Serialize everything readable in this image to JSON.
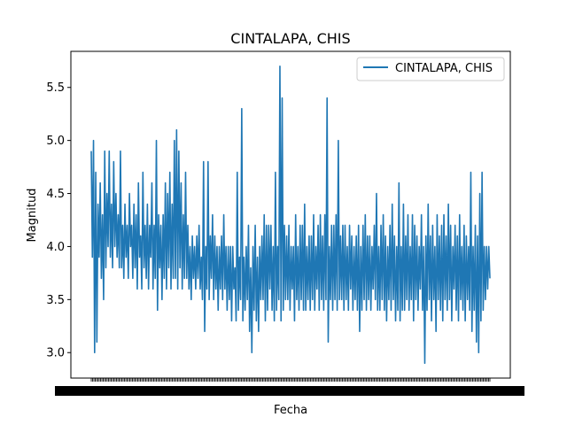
{
  "chart_data": {
    "type": "line",
    "title": "CINTALAPA, CHIS",
    "xlabel": "Fecha",
    "ylabel": "Magnitud",
    "ylim": [
      2.76,
      5.84
    ],
    "yticks": [
      3.0,
      3.5,
      4.0,
      4.5,
      5.0,
      5.5
    ],
    "grid": false,
    "legend_position": "top-right",
    "x_tick_labels_note": "overlapping unreadable date labels",
    "series": [
      {
        "name": "CINTALAPA, CHIS",
        "color": "#1f77b4",
        "values": [
          4.9,
          3.9,
          5.0,
          3.0,
          4.7,
          3.1,
          4.4,
          3.9,
          4.6,
          3.7,
          4.3,
          3.5,
          4.9,
          3.8,
          4.5,
          4.0,
          4.9,
          3.9,
          4.4,
          3.8,
          4.8,
          4.0,
          4.5,
          3.9,
          4.3,
          3.8,
          4.9,
          3.8,
          4.2,
          3.7,
          4.4,
          3.9,
          4.2,
          3.7,
          4.5,
          4.0,
          4.2,
          3.7,
          4.4,
          3.8,
          4.3,
          3.6,
          4.6,
          3.9,
          4.1,
          3.6,
          4.7,
          3.8,
          4.2,
          3.7,
          4.4,
          3.6,
          4.2,
          3.9,
          4.6,
          3.6,
          4.2,
          3.7,
          5.0,
          3.4,
          4.3,
          3.8,
          4.2,
          3.5,
          4.3,
          3.7,
          4.6,
          3.6,
          4.5,
          3.8,
          4.7,
          3.6,
          4.4,
          3.7,
          5.0,
          3.7,
          5.1,
          3.6,
          4.9,
          3.8,
          4.6,
          3.6,
          4.3,
          3.7,
          4.7,
          3.7,
          4.2,
          3.6,
          4.0,
          3.5,
          4.1,
          3.7,
          4.0,
          3.6,
          4.1,
          3.7,
          4.2,
          3.6,
          3.9,
          3.5,
          4.8,
          3.2,
          4.0,
          3.6,
          4.8,
          3.5,
          4.1,
          3.7,
          4.3,
          3.5,
          4.1,
          3.6,
          4.0,
          3.4,
          4.0,
          3.6,
          4.1,
          3.5,
          4.3,
          3.6,
          4.0,
          3.4,
          4.0,
          3.5,
          4.0,
          3.3,
          4.0,
          3.6,
          3.8,
          3.3,
          4.7,
          3.4,
          3.9,
          3.5,
          5.3,
          3.3,
          3.9,
          3.4,
          4.0,
          3.5,
          4.2,
          3.2,
          3.8,
          3.0,
          4.0,
          3.4,
          4.2,
          3.3,
          3.9,
          3.2,
          4.0,
          3.5,
          4.1,
          3.5,
          4.3,
          3.3,
          4.2,
          3.4,
          4.2,
          3.6,
          4.2,
          3.4,
          4.0,
          3.3,
          4.7,
          3.4,
          4.0,
          3.5,
          5.7,
          3.3,
          5.4,
          3.4,
          4.2,
          3.5,
          4.1,
          3.5,
          4.2,
          3.4,
          4.0,
          3.6,
          4.0,
          3.3,
          4.3,
          3.5,
          4.0,
          3.4,
          4.2,
          3.5,
          4.2,
          3.4,
          4.4,
          3.4,
          4.0,
          3.5,
          4.1,
          3.4,
          4.1,
          3.5,
          4.3,
          3.4,
          4.0,
          3.6,
          4.2,
          3.4,
          4.3,
          3.5,
          4.1,
          3.4,
          4.3,
          3.5,
          5.4,
          3.1,
          4.0,
          3.5,
          4.2,
          3.4,
          4.2,
          3.5,
          4.3,
          3.4,
          5.0,
          3.5,
          4.1,
          3.5,
          4.2,
          3.4,
          4.2,
          3.5,
          4.0,
          3.4,
          4.2,
          3.6,
          4.1,
          3.4,
          4.0,
          3.5,
          4.1,
          3.4,
          4.2,
          3.2,
          4.0,
          3.4,
          4.2,
          3.5,
          4.3,
          3.4,
          4.1,
          3.5,
          4.1,
          3.4,
          4.0,
          3.6,
          4.2,
          3.5,
          4.5,
          3.4,
          4.0,
          3.4,
          4.2,
          3.5,
          4.3,
          3.4,
          4.1,
          3.3,
          4.0,
          3.5,
          4.2,
          3.4,
          4.4,
          3.5,
          4.1,
          3.3,
          4.0,
          3.4,
          4.6,
          3.3,
          4.0,
          3.4,
          4.4,
          3.4,
          4.1,
          3.5,
          4.3,
          3.4,
          4.0,
          3.5,
          4.3,
          3.3,
          4.2,
          3.5,
          4.1,
          3.4,
          4.0,
          3.6,
          4.3,
          3.4,
          4.0,
          2.9,
          4.1,
          3.4,
          4.4,
          3.5,
          4.1,
          3.3,
          4.2,
          3.5,
          4.0,
          3.2,
          4.3,
          3.5,
          4.1,
          3.4,
          4.2,
          3.3,
          4.3,
          3.5,
          4.1,
          3.4,
          4.4,
          3.5,
          4.2,
          3.3,
          4.0,
          3.6,
          4.2,
          3.4,
          4.1,
          3.3,
          4.3,
          3.5,
          4.0,
          3.4,
          4.2,
          3.3,
          4.1,
          3.5,
          4.0,
          3.4,
          4.7,
          3.2,
          4.0,
          3.4,
          4.2,
          3.1,
          4.1,
          3.0,
          4.5,
          3.3,
          4.7,
          3.4,
          4.0,
          3.5,
          4.0,
          3.6,
          4.0,
          3.7
        ]
      }
    ]
  }
}
